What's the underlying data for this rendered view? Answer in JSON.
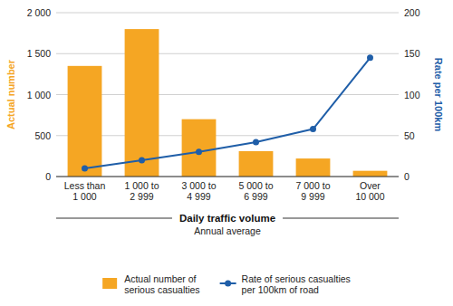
{
  "chart_data": {
    "type": "bar",
    "categories": [
      "Less than\n1 000",
      "1 000 to\n2 999",
      "3 000 to\n4 999",
      "5 000 to\n6 999",
      "7 000 to\n9 999",
      "Over\n10 000"
    ],
    "series": [
      {
        "name": "Actual number of\nserious casualties",
        "type": "bar",
        "color": "#F5A623",
        "values": [
          1350,
          1800,
          700,
          310,
          220,
          70
        ]
      },
      {
        "name": "Rate of serious casualties\nper 100km of road",
        "type": "line",
        "axis": "y2",
        "marker": "circle",
        "color": "#1F5EA8",
        "values": [
          10,
          20,
          30,
          42,
          58,
          145
        ]
      }
    ],
    "y_label": "Actual number",
    "y2_label": "Rate per 100km",
    "x_label": "Daily traffic volume",
    "x_label_sub": "Annual average",
    "ylim": [
      0,
      2000
    ],
    "yticks": [
      0,
      500,
      {
        "value": 1000,
        "label": "1 000"
      },
      {
        "value": 1500,
        "label": "1 500"
      },
      {
        "value": 2000,
        "label": "2 000"
      }
    ],
    "y2lim": [
      0,
      200
    ],
    "y2ticks": [
      0,
      50,
      100,
      150,
      200
    ],
    "grid": true,
    "legend": "bottom"
  }
}
